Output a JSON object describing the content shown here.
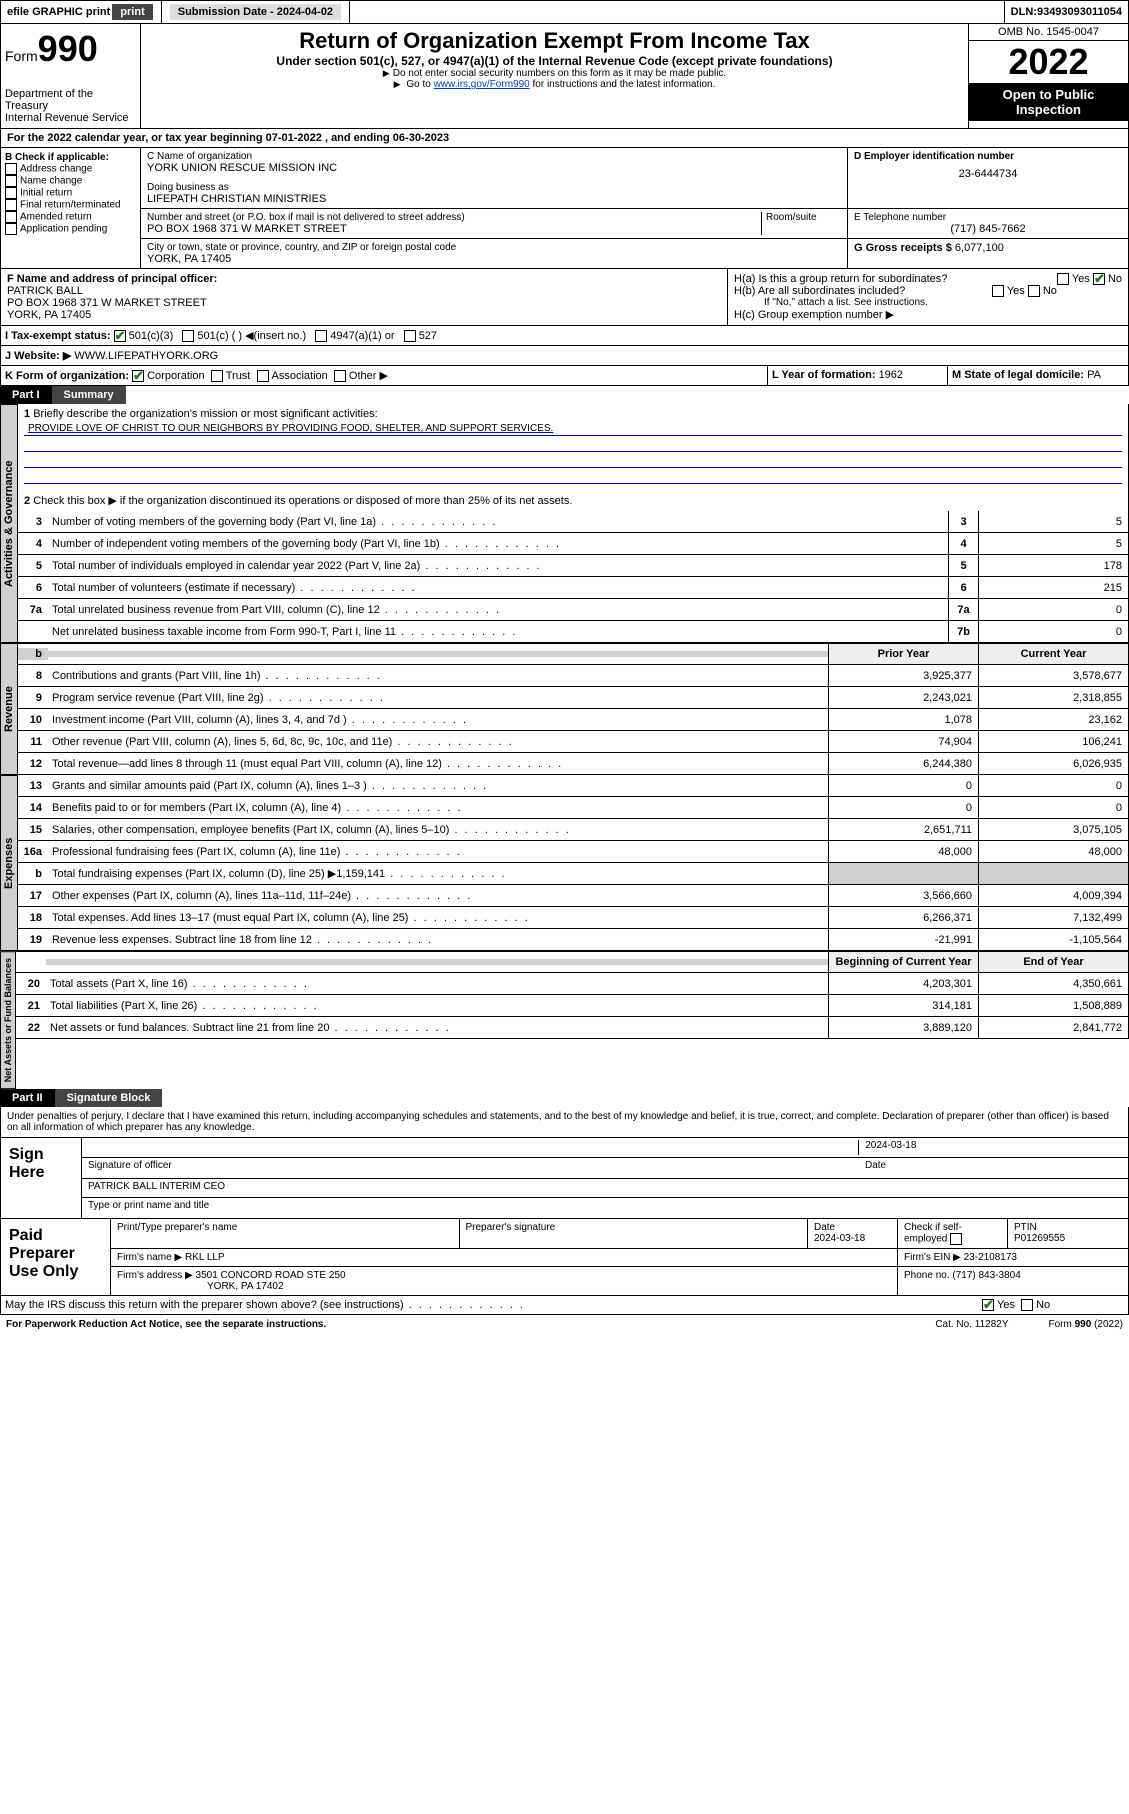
{
  "topbar": {
    "efile": "efile GRAPHIC print",
    "submission_label": "Submission Date - ",
    "submission_date": "2024-04-02",
    "dln_label": "DLN: ",
    "dln": "93493093011054"
  },
  "header": {
    "form_word": "Form",
    "form_num": "990",
    "title": "Return of Organization Exempt From Income Tax",
    "subtitle": "Under section 501(c), 527, or 4947(a)(1) of the Internal Revenue Code (except private foundations)",
    "note1": "Do not enter social security numbers on this form as it may be made public.",
    "note2_pre": "Go to ",
    "note2_link": "www.irs.gov/Form990",
    "note2_post": " for instructions and the latest information.",
    "dept": "Department of the Treasury",
    "irs": "Internal Revenue Service",
    "omb": "OMB No. 1545-0047",
    "year": "2022",
    "otp": "Open to Public Inspection"
  },
  "section_a": {
    "prefix": "A",
    "text": "For the 2022 calendar year, or tax year beginning ",
    "begin": "07-01-2022",
    "mid": " , and ending ",
    "end": "06-30-2023"
  },
  "section_b": {
    "label": "B Check if applicable:",
    "opts": [
      "Address change",
      "Name change",
      "Initial return",
      "Final return/terminated",
      "Amended return",
      "Application pending"
    ]
  },
  "section_c": {
    "label": "C Name of organization",
    "name": "YORK UNION RESCUE MISSION INC",
    "dba_label": "Doing business as",
    "dba": "LIFEPATH CHRISTIAN MINISTRIES",
    "street_label": "Number and street (or P.O. box if mail is not delivered to street address)",
    "street": "PO BOX 1968 371 W MARKET STREET",
    "room_label": "Room/suite",
    "city_label": "City or town, state or province, country, and ZIP or foreign postal code",
    "city": "YORK, PA  17405"
  },
  "section_d": {
    "label": "D Employer identification number",
    "value": "23-6444734"
  },
  "section_e": {
    "label": "E Telephone number",
    "value": "(717) 845-7662"
  },
  "section_g": {
    "label": "G Gross receipts $ ",
    "value": "6,077,100"
  },
  "section_f": {
    "label": "F Name and address of principal officer:",
    "name": "PATRICK BALL",
    "addr1": "PO BOX 1968 371 W MARKET STREET",
    "addr2": "YORK, PA  17405"
  },
  "section_h": {
    "ha": "H(a)  Is this a group return for subordinates?",
    "hb": "H(b)  Are all subordinates included?",
    "hb_note": "If \"No,\" attach a list. See instructions.",
    "hc": "H(c)  Group exemption number ▶",
    "yes": "Yes",
    "no": "No"
  },
  "section_i": {
    "label": "I   Tax-exempt status:",
    "o1": "501(c)(3)",
    "o2": "501(c) (  ) ◀(insert no.)",
    "o3": "4947(a)(1) or",
    "o4": "527"
  },
  "section_j": {
    "label": "J   Website: ▶",
    "value": "WWW.LIFEPATHYORK.ORG"
  },
  "section_k": {
    "label": "K Form of organization:",
    "o1": "Corporation",
    "o2": "Trust",
    "o3": "Association",
    "o4": "Other ▶"
  },
  "section_l": {
    "label": "L Year of formation: ",
    "value": "1962"
  },
  "section_m": {
    "label": "M State of legal domicile: ",
    "value": "PA"
  },
  "part1": {
    "num": "Part I",
    "label": "Summary"
  },
  "summary": {
    "q1": "Briefly describe the organization's mission or most significant activities:",
    "mission": "PROVIDE LOVE OF CHRIST TO OUR NEIGHBORS BY PROVIDING FOOD, SHELTER, AND SUPPORT SERVICES.",
    "q2": "Check this box ▶      if the organization discontinued its operations or disposed of more than 25% of its net assets.",
    "lines_gov": [
      {
        "n": "3",
        "d": "Number of voting members of the governing body (Part VI, line 1a)",
        "box": "3",
        "v": "5"
      },
      {
        "n": "4",
        "d": "Number of independent voting members of the governing body (Part VI, line 1b)",
        "box": "4",
        "v": "5"
      },
      {
        "n": "5",
        "d": "Total number of individuals employed in calendar year 2022 (Part V, line 2a)",
        "box": "5",
        "v": "178"
      },
      {
        "n": "6",
        "d": "Total number of volunteers (estimate if necessary)",
        "box": "6",
        "v": "215"
      },
      {
        "n": "7a",
        "d": "Total unrelated business revenue from Part VIII, column (C), line 12",
        "box": "7a",
        "v": "0"
      },
      {
        "n": "",
        "d": "Net unrelated business taxable income from Form 990-T, Part I, line 11",
        "box": "7b",
        "v": "0"
      }
    ],
    "hdr_prior": "Prior Year",
    "hdr_curr": "Current Year",
    "lines_rev": [
      {
        "n": "8",
        "d": "Contributions and grants (Part VIII, line 1h)",
        "p": "3,925,377",
        "c": "3,578,677"
      },
      {
        "n": "9",
        "d": "Program service revenue (Part VIII, line 2g)",
        "p": "2,243,021",
        "c": "2,318,855"
      },
      {
        "n": "10",
        "d": "Investment income (Part VIII, column (A), lines 3, 4, and 7d )",
        "p": "1,078",
        "c": "23,162"
      },
      {
        "n": "11",
        "d": "Other revenue (Part VIII, column (A), lines 5, 6d, 8c, 9c, 10c, and 11e)",
        "p": "74,904",
        "c": "106,241"
      },
      {
        "n": "12",
        "d": "Total revenue—add lines 8 through 11 (must equal Part VIII, column (A), line 12)",
        "p": "6,244,380",
        "c": "6,026,935"
      }
    ],
    "lines_exp": [
      {
        "n": "13",
        "d": "Grants and similar amounts paid (Part IX, column (A), lines 1–3 )",
        "p": "0",
        "c": "0"
      },
      {
        "n": "14",
        "d": "Benefits paid to or for members (Part IX, column (A), line 4)",
        "p": "0",
        "c": "0"
      },
      {
        "n": "15",
        "d": "Salaries, other compensation, employee benefits (Part IX, column (A), lines 5–10)",
        "p": "2,651,711",
        "c": "3,075,105"
      },
      {
        "n": "16a",
        "d": "Professional fundraising fees (Part IX, column (A), line 11e)",
        "p": "48,000",
        "c": "48,000"
      },
      {
        "n": "b",
        "d": "Total fundraising expenses (Part IX, column (D), line 25) ▶1,159,141",
        "p": "",
        "c": ""
      },
      {
        "n": "17",
        "d": "Other expenses (Part IX, column (A), lines 11a–11d, 11f–24e)",
        "p": "3,566,660",
        "c": "4,009,394"
      },
      {
        "n": "18",
        "d": "Total expenses. Add lines 13–17 (must equal Part IX, column (A), line 25)",
        "p": "6,266,371",
        "c": "7,132,499"
      },
      {
        "n": "19",
        "d": "Revenue less expenses. Subtract line 18 from line 12",
        "p": "-21,991",
        "c": "-1,105,564"
      }
    ],
    "hdr_begin": "Beginning of Current Year",
    "hdr_end": "End of Year",
    "lines_net": [
      {
        "n": "20",
        "d": "Total assets (Part X, line 16)",
        "p": "4,203,301",
        "c": "4,350,661"
      },
      {
        "n": "21",
        "d": "Total liabilities (Part X, line 26)",
        "p": "314,181",
        "c": "1,508,889"
      },
      {
        "n": "22",
        "d": "Net assets or fund balances. Subtract line 21 from line 20",
        "p": "3,889,120",
        "c": "2,841,772"
      }
    ],
    "tab_gov": "Activities & Governance",
    "tab_rev": "Revenue",
    "tab_exp": "Expenses",
    "tab_net": "Net Assets or Fund Balances"
  },
  "part2": {
    "num": "Part II",
    "label": "Signature Block"
  },
  "sig": {
    "decl": "Under penalties of perjury, I declare that I have examined this return, including accompanying schedules and statements, and to the best of my knowledge and belief, it is true, correct, and complete. Declaration of preparer (other than officer) is based on all information of which preparer has any knowledge.",
    "sign_here": "Sign Here",
    "sig_officer": "Signature of officer",
    "date": "Date",
    "date_val": "2024-03-18",
    "officer": "PATRICK BALL INTERIM CEO",
    "type_name": "Type or print name and title",
    "paid": "Paid Preparer Use Only",
    "hdr": [
      "Print/Type preparer's name",
      "Preparer's signature",
      "Date",
      "Check      if self-employed",
      "PTIN"
    ],
    "prep_date": "2024-03-18",
    "ptin": "P01269555",
    "firm_name_lbl": "Firm's name    ▶",
    "firm_name": "RKL LLP",
    "firm_ein_lbl": "Firm's EIN ▶",
    "firm_ein": "23-2108173",
    "firm_addr_lbl": "Firm's address ▶",
    "firm_addr": "3501 CONCORD ROAD STE 250",
    "firm_city": "YORK, PA  17402",
    "phone_lbl": "Phone no. ",
    "phone": "(717) 843-3804",
    "discuss": "May the IRS discuss this return with the preparer shown above? (see instructions)"
  },
  "footer": {
    "pra": "For Paperwork Reduction Act Notice, see the separate instructions.",
    "cat": "Cat. No. 11282Y",
    "form": "Form 990 (2022)"
  },
  "colors": {
    "link": "#0040c0",
    "green": "#1a7a1a",
    "gray": "#d0d0d0"
  }
}
